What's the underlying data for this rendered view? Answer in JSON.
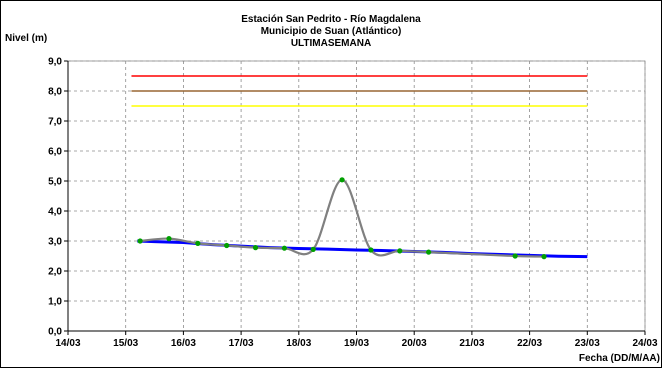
{
  "chart_data": {
    "type": "line",
    "title_lines": [
      "Estación San Pedrito - Río Magdalena",
      "Municipio de Suan (Atlántico)",
      "ULTIMASEMANA"
    ],
    "ylabel": "Nivel (m)",
    "xlabel": "Fecha (DD/M/AA)",
    "x_ticks": [
      "14/03",
      "15/03",
      "16/03",
      "17/03",
      "18/03",
      "19/03",
      "20/03",
      "21/03",
      "22/03",
      "23/03",
      "24/03"
    ],
    "y_ticks": [
      "0,0",
      "1,0",
      "2,0",
      "3,0",
      "4,0",
      "5,0",
      "6,0",
      "7,0",
      "8,0",
      "9,0"
    ],
    "xlim": [
      0,
      10
    ],
    "ylim": [
      0,
      9
    ],
    "grid": true,
    "thresholds": [
      {
        "value": 8.5,
        "color": "#ff0000",
        "x_range": [
          1.1,
          9.0
        ]
      },
      {
        "value": 8.0,
        "color": "#996633",
        "x_range": [
          1.1,
          9.0
        ]
      },
      {
        "value": 7.5,
        "color": "#ffff00",
        "x_range": [
          1.1,
          9.0
        ]
      }
    ],
    "series": [
      {
        "color": "#0000ff",
        "style": "thick",
        "points": [
          [
            1.2,
            3.0
          ],
          [
            1.5,
            2.98
          ],
          [
            2.0,
            2.95
          ],
          [
            2.5,
            2.88
          ],
          [
            3.0,
            2.83
          ],
          [
            3.5,
            2.78
          ],
          [
            4.0,
            2.75
          ],
          [
            4.5,
            2.73
          ],
          [
            5.0,
            2.7
          ],
          [
            5.5,
            2.68
          ],
          [
            6.0,
            2.65
          ],
          [
            6.5,
            2.62
          ],
          [
            7.0,
            2.58
          ],
          [
            7.5,
            2.55
          ],
          [
            8.0,
            2.52
          ],
          [
            8.5,
            2.49
          ],
          [
            9.0,
            2.48
          ]
        ]
      },
      {
        "color": "#808080",
        "style": "smooth",
        "points": [
          [
            1.25,
            3.0
          ],
          [
            1.75,
            3.08
          ],
          [
            2.25,
            2.92
          ],
          [
            2.75,
            2.85
          ],
          [
            3.25,
            2.78
          ],
          [
            3.75,
            2.76
          ],
          [
            4.25,
            2.72
          ],
          [
            4.75,
            5.04
          ],
          [
            5.25,
            2.7
          ],
          [
            5.75,
            2.67
          ],
          [
            6.25,
            2.63
          ],
          [
            7.75,
            2.5
          ],
          [
            8.25,
            2.48
          ]
        ]
      }
    ]
  }
}
